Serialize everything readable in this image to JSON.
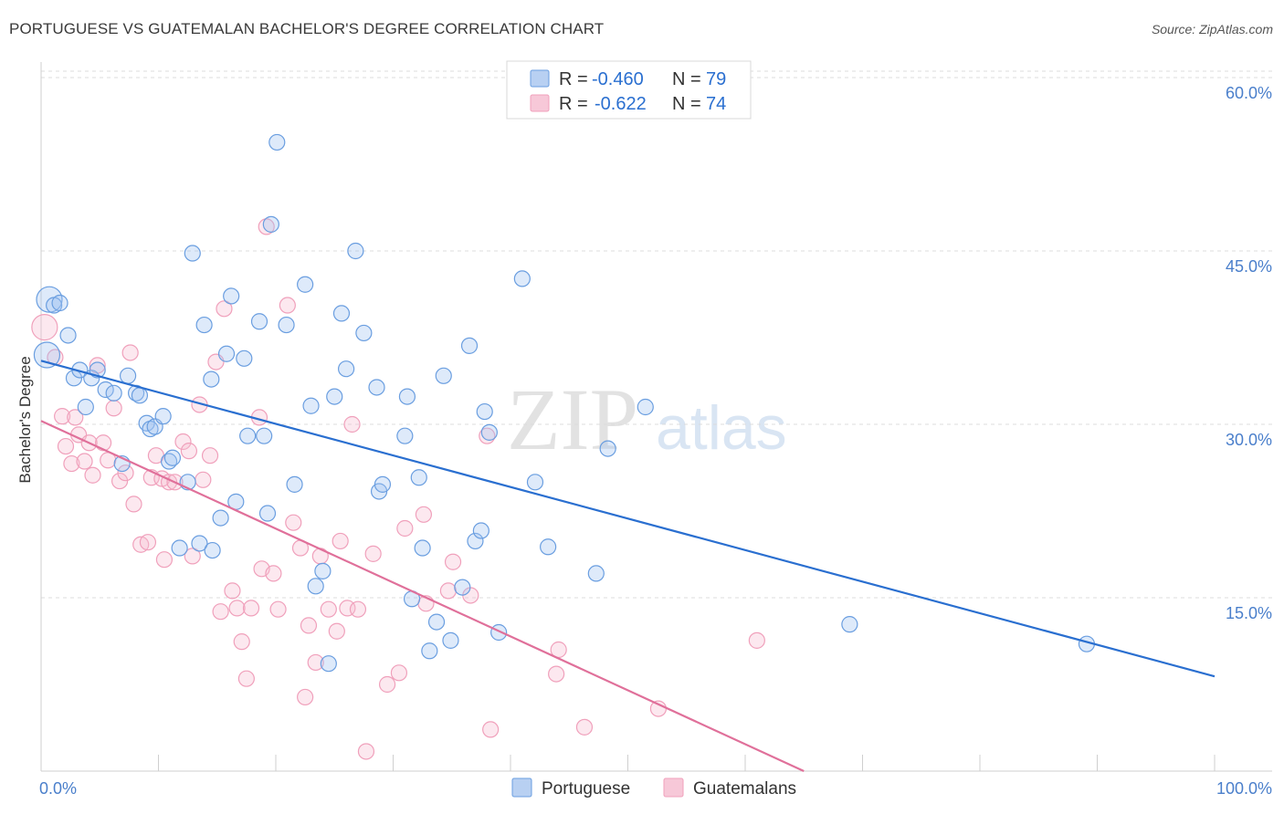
{
  "title": "PORTUGUESE VS GUATEMALAN BACHELOR'S DEGREE CORRELATION CHART",
  "source": "Source: ZipAtlas.com",
  "watermark": {
    "zip": "ZIP",
    "atlas": "atlas"
  },
  "colors": {
    "portuguese": "#6a9ee0",
    "portuguese_line": "#2a6fd0",
    "guatemalan": "#f0a0bb",
    "guatemalan_line": "#e0709a",
    "tick_text": "#4a7fcb"
  },
  "legend": {
    "rows": [
      {
        "r_label": "R =",
        "r_value": "-0.460",
        "n_label": "N =",
        "n_value": "79"
      },
      {
        "r_label": "R =",
        "r_value": "-0.622",
        "n_label": "N =",
        "n_value": "74"
      }
    ]
  },
  "chart_data": {
    "type": "scatter",
    "title": "PORTUGUESE VS GUATEMALAN BACHELOR'S DEGREE CORRELATION CHART",
    "xlabel": "",
    "ylabel": "Bachelor's Degree",
    "xlim": [
      0,
      100
    ],
    "ylim": [
      0,
      60
    ],
    "x_tick_labels": [
      "0.0%",
      "100.0%"
    ],
    "y_ticks": [
      15,
      30,
      45,
      60
    ],
    "y_tick_labels": [
      "15.0%",
      "30.0%",
      "45.0%",
      "60.0%"
    ],
    "grid": true,
    "legend_position": "top-center",
    "series": [
      {
        "name": "Portuguese",
        "trend": {
          "x": [
            0,
            100
          ],
          "y": [
            35.5,
            8.2
          ]
        },
        "points": [
          [
            0.5,
            36.0
          ],
          [
            0.7,
            40.8
          ],
          [
            1.1,
            40.3
          ],
          [
            1.6,
            40.5
          ],
          [
            2.3,
            37.7
          ],
          [
            2.8,
            34.0
          ],
          [
            3.3,
            34.7
          ],
          [
            3.8,
            31.5
          ],
          [
            4.3,
            34.0
          ],
          [
            4.8,
            34.7
          ],
          [
            5.5,
            33.0
          ],
          [
            6.2,
            32.7
          ],
          [
            6.9,
            26.6
          ],
          [
            7.4,
            34.2
          ],
          [
            8.1,
            32.7
          ],
          [
            8.4,
            32.5
          ],
          [
            9.0,
            30.1
          ],
          [
            9.3,
            29.6
          ],
          [
            9.7,
            29.8
          ],
          [
            10.4,
            30.7
          ],
          [
            10.9,
            26.8
          ],
          [
            11.2,
            27.1
          ],
          [
            11.8,
            19.3
          ],
          [
            12.5,
            25.0
          ],
          [
            12.9,
            44.8
          ],
          [
            13.5,
            19.7
          ],
          [
            13.9,
            38.6
          ],
          [
            14.5,
            33.9
          ],
          [
            14.6,
            19.1
          ],
          [
            15.3,
            21.9
          ],
          [
            15.8,
            36.1
          ],
          [
            16.2,
            41.1
          ],
          [
            16.6,
            23.3
          ],
          [
            17.3,
            35.7
          ],
          [
            17.6,
            29.0
          ],
          [
            18.6,
            38.9
          ],
          [
            19.0,
            29.0
          ],
          [
            19.3,
            22.3
          ],
          [
            19.6,
            47.3
          ],
          [
            20.1,
            54.4
          ],
          [
            20.9,
            38.6
          ],
          [
            21.6,
            24.8
          ],
          [
            22.5,
            42.1
          ],
          [
            23.0,
            31.6
          ],
          [
            24.0,
            17.3
          ],
          [
            24.5,
            9.3
          ],
          [
            25.0,
            32.4
          ],
          [
            25.6,
            39.6
          ],
          [
            26.0,
            34.8
          ],
          [
            26.8,
            45.0
          ],
          [
            27.5,
            37.9
          ],
          [
            28.6,
            33.2
          ],
          [
            28.8,
            24.2
          ],
          [
            29.1,
            24.8
          ],
          [
            31.0,
            29.0
          ],
          [
            31.2,
            32.4
          ],
          [
            31.6,
            14.9
          ],
          [
            32.2,
            25.4
          ],
          [
            32.5,
            19.3
          ],
          [
            33.1,
            10.4
          ],
          [
            33.7,
            12.9
          ],
          [
            34.3,
            34.2
          ],
          [
            34.9,
            11.3
          ],
          [
            35.9,
            15.9
          ],
          [
            36.5,
            36.8
          ],
          [
            37.0,
            19.9
          ],
          [
            37.5,
            20.8
          ],
          [
            37.8,
            31.1
          ],
          [
            38.2,
            29.3
          ],
          [
            39.0,
            12.0
          ],
          [
            41.0,
            42.6
          ],
          [
            42.1,
            25.0
          ],
          [
            43.2,
            19.4
          ],
          [
            47.3,
            17.1
          ],
          [
            48.3,
            27.9
          ],
          [
            51.5,
            31.5
          ],
          [
            68.9,
            12.7
          ],
          [
            89.1,
            11.0
          ],
          [
            23.4,
            16.0
          ]
        ]
      },
      {
        "name": "Guatemalans",
        "trend": {
          "x": [
            0,
            65
          ],
          "y": [
            30.3,
            0
          ]
        },
        "points": [
          [
            0.3,
            38.4
          ],
          [
            1.2,
            35.8
          ],
          [
            1.8,
            30.7
          ],
          [
            2.1,
            28.1
          ],
          [
            2.6,
            26.6
          ],
          [
            2.9,
            30.6
          ],
          [
            3.2,
            29.1
          ],
          [
            3.7,
            26.8
          ],
          [
            4.1,
            28.4
          ],
          [
            4.4,
            25.6
          ],
          [
            4.8,
            35.1
          ],
          [
            5.3,
            28.4
          ],
          [
            5.7,
            26.9
          ],
          [
            6.2,
            31.4
          ],
          [
            6.7,
            25.1
          ],
          [
            7.2,
            25.8
          ],
          [
            7.6,
            36.2
          ],
          [
            7.9,
            23.1
          ],
          [
            8.5,
            19.6
          ],
          [
            9.1,
            19.8
          ],
          [
            9.4,
            25.4
          ],
          [
            9.8,
            27.3
          ],
          [
            10.3,
            25.3
          ],
          [
            10.5,
            18.3
          ],
          [
            10.9,
            25.0
          ],
          [
            11.4,
            25.0
          ],
          [
            12.1,
            28.5
          ],
          [
            12.6,
            27.7
          ],
          [
            12.9,
            18.6
          ],
          [
            13.5,
            31.7
          ],
          [
            13.8,
            25.2
          ],
          [
            14.4,
            27.3
          ],
          [
            14.9,
            35.4
          ],
          [
            15.3,
            13.8
          ],
          [
            15.6,
            40.0
          ],
          [
            16.3,
            15.6
          ],
          [
            16.7,
            14.1
          ],
          [
            17.1,
            11.2
          ],
          [
            17.5,
            8.0
          ],
          [
            17.9,
            14.1
          ],
          [
            18.6,
            30.6
          ],
          [
            18.8,
            17.5
          ],
          [
            19.2,
            47.1
          ],
          [
            19.8,
            17.1
          ],
          [
            20.2,
            14.0
          ],
          [
            21.0,
            40.3
          ],
          [
            21.5,
            21.5
          ],
          [
            22.1,
            19.3
          ],
          [
            22.5,
            6.4
          ],
          [
            22.8,
            12.6
          ],
          [
            23.4,
            9.4
          ],
          [
            23.8,
            18.6
          ],
          [
            24.5,
            14.0
          ],
          [
            25.2,
            12.1
          ],
          [
            25.5,
            19.9
          ],
          [
            26.1,
            14.1
          ],
          [
            26.5,
            30.0
          ],
          [
            27.0,
            14.0
          ],
          [
            27.7,
            1.7
          ],
          [
            28.3,
            18.8
          ],
          [
            29.5,
            7.5
          ],
          [
            30.5,
            8.5
          ],
          [
            31.0,
            21.0
          ],
          [
            32.6,
            22.2
          ],
          [
            32.8,
            14.5
          ],
          [
            34.7,
            15.6
          ],
          [
            35.1,
            18.1
          ],
          [
            36.6,
            15.2
          ],
          [
            38.0,
            29.0
          ],
          [
            38.3,
            3.6
          ],
          [
            43.9,
            8.4
          ],
          [
            44.1,
            10.5
          ],
          [
            46.3,
            3.8
          ],
          [
            52.6,
            5.4
          ]
        ]
      }
    ],
    "extra_guatemalan_points": [
      [
        61.0,
        11.3
      ]
    ]
  }
}
